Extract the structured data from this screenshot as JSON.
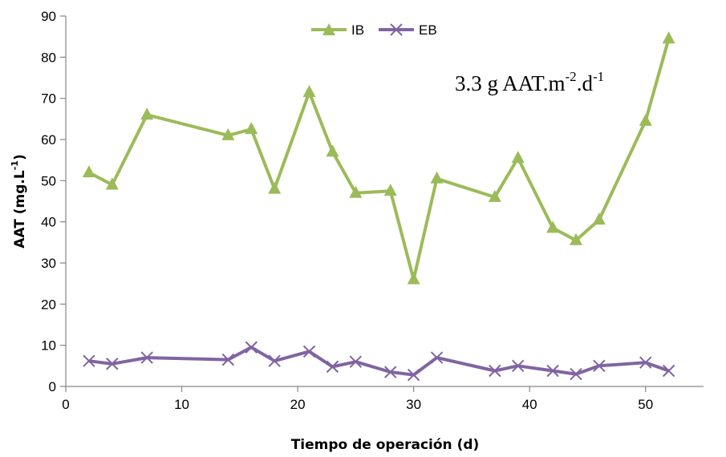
{
  "chart_data": {
    "type": "line",
    "xlabel": "Tiempo de operación (d)",
    "ylabel_main": "AAT (mg.L",
    "ylabel_sup": "-1",
    "ylabel_end": ")",
    "xlim": [
      0,
      55
    ],
    "ylim": [
      0,
      90
    ],
    "x_ticks": [
      0,
      10,
      20,
      30,
      40,
      50
    ],
    "y_ticks": [
      0,
      10,
      20,
      30,
      40,
      50,
      60,
      70,
      80,
      90
    ],
    "grid": false,
    "legend_placement": "top-center",
    "annotation": {
      "text_main": "3.3 g AAT.m",
      "sup1": "-2",
      "text_mid": ".d",
      "sup2": "-1"
    },
    "series": [
      {
        "name": "IB",
        "color": "#9bbb59",
        "marker": "triangle",
        "x": [
          2,
          4,
          7,
          14,
          16,
          18,
          21,
          23,
          25,
          28,
          30,
          32,
          37,
          39,
          42,
          44,
          46,
          50,
          52
        ],
        "values": [
          52,
          49,
          66,
          61,
          62.5,
          48,
          71.5,
          57,
          47,
          47.5,
          26,
          50.5,
          46,
          55.5,
          38.5,
          35.5,
          40.5,
          64.5,
          84.5
        ]
      },
      {
        "name": "EB",
        "color": "#8064a2",
        "marker": "x",
        "x": [
          2,
          4,
          7,
          14,
          16,
          18,
          21,
          23,
          25,
          28,
          30,
          32,
          37,
          39,
          42,
          44,
          46,
          50,
          52
        ],
        "values": [
          6.2,
          5.5,
          7,
          6.5,
          9.5,
          6.2,
          8.5,
          4.8,
          6,
          3.5,
          2.8,
          7,
          3.8,
          5,
          3.8,
          3.0,
          5,
          5.8,
          3.8
        ]
      }
    ]
  }
}
